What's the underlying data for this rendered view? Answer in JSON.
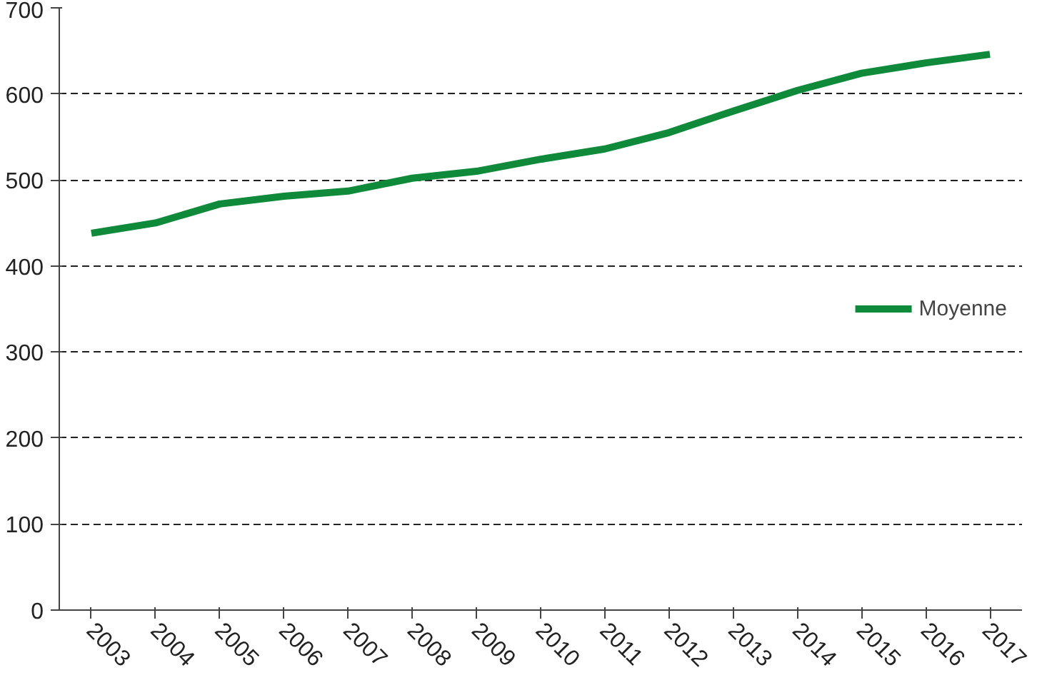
{
  "chart_data": {
    "type": "line",
    "categories": [
      "2003",
      "2004",
      "2005",
      "2006",
      "2007",
      "2008",
      "2009",
      "2010",
      "2011",
      "2012",
      "2013",
      "2014",
      "2015",
      "2016",
      "2017"
    ],
    "series": [
      {
        "name": "Moyenne",
        "color": "#0e8a3a",
        "values": [
          438,
          450,
          472,
          481,
          487,
          502,
          510,
          524,
          536,
          555,
          580,
          604,
          624,
          636,
          646
        ]
      }
    ],
    "ylim": [
      0,
      700
    ],
    "yticks": [
      0,
      100,
      200,
      300,
      400,
      500,
      600,
      700
    ],
    "grid": "y",
    "legend": "right",
    "line_style": "solid"
  }
}
